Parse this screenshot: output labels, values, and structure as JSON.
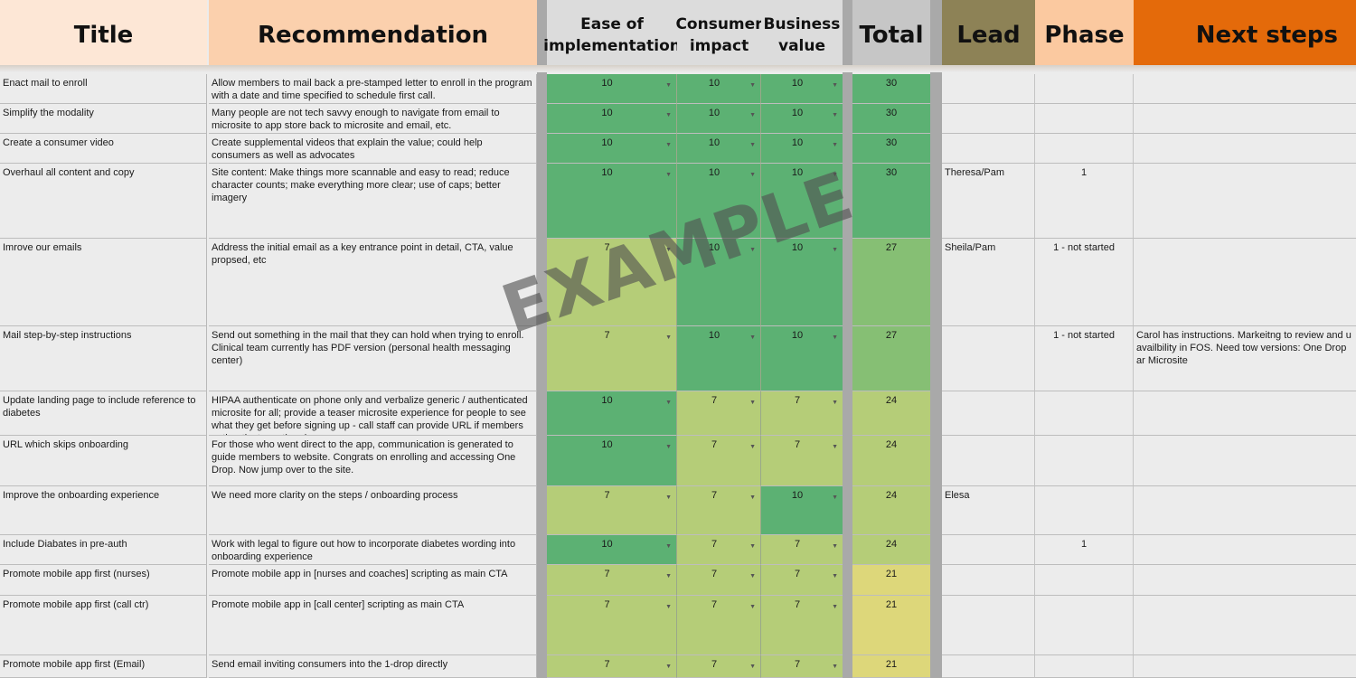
{
  "headers": {
    "title": "Title",
    "recommendation": "Recommendation",
    "ease": "Ease of implementation",
    "consumer": "Consumer impact",
    "business": "Business value",
    "total": "Total",
    "lead": "Lead",
    "phase": "Phase",
    "next": "Next steps"
  },
  "watermark": "EXAMPLE",
  "colors": {
    "score_10": "#5cb173",
    "score_7": "#b5cd78",
    "total_30": "#5cb173",
    "total_27": "#86bf74",
    "total_24": "#b5cd78",
    "total_21": "#ddd77a",
    "next_steps_header": "#e46a0a",
    "lead_header": "#8d8256"
  },
  "rows": [
    {
      "title": "Enact mail to enroll",
      "recommendation": "Allow members to mail back a pre-stamped letter to enroll in the program with a date and time specified to schedule first call.",
      "ease": "10",
      "consumer": "10",
      "business": "10",
      "total": "30",
      "lead": "",
      "phase": "",
      "next": ""
    },
    {
      "title": "Simplify the modality",
      "recommendation": "Many people are not tech savvy enough to navigate from email to microsite to app store back to microsite and email, etc.",
      "ease": "10",
      "consumer": "10",
      "business": "10",
      "total": "30",
      "lead": "",
      "phase": "",
      "next": ""
    },
    {
      "title": "Create a consumer video",
      "recommendation": "Create supplemental videos that explain the value; could help consumers as well as advocates",
      "ease": "10",
      "consumer": "10",
      "business": "10",
      "total": "30",
      "lead": "",
      "phase": "",
      "next": ""
    },
    {
      "title": "Overhaul all content and copy",
      "recommendation": "Site content: Make things more scannable and easy to read; reduce character counts; make everything more clear; use of caps;  better imagery",
      "ease": "10",
      "consumer": "10",
      "business": "10",
      "total": "30",
      "lead": "Theresa/Pam",
      "phase": "1",
      "next": ""
    },
    {
      "title": "Imrove our emails",
      "recommendation": "Address the initial email as a key entrance point in detail, CTA, value propsed, etc",
      "ease": "7",
      "consumer": "10",
      "business": "10",
      "total": "27",
      "lead": "Sheila/Pam",
      "phase": "1 - not started",
      "next": ""
    },
    {
      "title": "Mail step-by-step instructions",
      "recommendation": "Send out something in the mail that they can hold when trying to enroll. Clinical team currently has PDF version (personal health messaging center)",
      "ease": "7",
      "consumer": "10",
      "business": "10",
      "total": "27",
      "lead": "",
      "phase": "1 - not started",
      "next": "Carol has instructions.  Markeitng to review and u availbility in FOS.  Need tow versions: One Drop ar Microsite"
    },
    {
      "title": "Update landing page to include reference to diabetes",
      "recommendation": "HIPAA authenticate on phone only and verbalize generic / authenticated microsite for all; provide a teaser microsite experience for people to see what they get before signing up - call staff can provide URL if members authenticate on the phone",
      "ease": "10",
      "consumer": "7",
      "business": "7",
      "total": "24",
      "lead": "",
      "phase": "",
      "next": ""
    },
    {
      "title": "URL which skips onboarding",
      "recommendation": "For those who went direct to the app, communication is generated to guide members to website.  Congrats on enrolling and accessing One Drop.  Now jump over to the site.",
      "ease": "10",
      "consumer": "7",
      "business": "7",
      "total": "24",
      "lead": "",
      "phase": "",
      "next": ""
    },
    {
      "title": "Improve the onboarding experience",
      "recommendation": "We need more clarity on the steps / onboarding process",
      "ease": "7",
      "consumer": "7",
      "business": "10",
      "total": "24",
      "lead": "Elesa",
      "phase": "",
      "next": ""
    },
    {
      "title": "Include Diabates in pre-auth",
      "recommendation": "Work with legal to figure out how to incorporate diabetes wording into onboarding experience",
      "ease": "10",
      "consumer": "7",
      "business": "7",
      "total": "24",
      "lead": "",
      "phase": "1",
      "next": ""
    },
    {
      "title": "Promote mobile app first (nurses)",
      "recommendation": "Promote mobile app in [nurses and coaches] scripting as main CTA",
      "ease": "7",
      "consumer": "7",
      "business": "7",
      "total": "21",
      "lead": "",
      "phase": "",
      "next": ""
    },
    {
      "title": "Promote mobile app first (call ctr)",
      "recommendation": "Promote mobile app in [call center] scripting as main CTA",
      "ease": "7",
      "consumer": "7",
      "business": "7",
      "total": "21",
      "lead": "",
      "phase": "",
      "next": ""
    },
    {
      "title": "Promote mobile app first (Email)",
      "recommendation": "Send email inviting consumers into the 1-drop directly",
      "ease": "7",
      "consumer": "7",
      "business": "7",
      "total": "21",
      "lead": "",
      "phase": "",
      "next": ""
    }
  ]
}
